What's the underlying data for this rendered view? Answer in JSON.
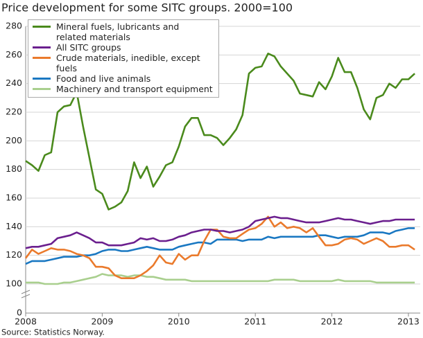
{
  "chart_data": {
    "type": "line",
    "title": "Price development for some SITC groups. 2000=100",
    "source": "Source: Statistics Norway.",
    "x": [
      2008,
      2008.083,
      2008.167,
      2008.25,
      2008.333,
      2008.417,
      2008.5,
      2008.583,
      2008.667,
      2008.75,
      2008.833,
      2008.917,
      2009,
      2009.083,
      2009.167,
      2009.25,
      2009.333,
      2009.417,
      2009.5,
      2009.583,
      2009.667,
      2009.75,
      2009.833,
      2009.917,
      2010,
      2010.083,
      2010.167,
      2010.25,
      2010.333,
      2010.417,
      2010.5,
      2010.583,
      2010.667,
      2010.75,
      2010.833,
      2010.917,
      2011,
      2011.083,
      2011.167,
      2011.25,
      2011.333,
      2011.417,
      2011.5,
      2011.583,
      2011.667,
      2011.75,
      2011.833,
      2011.917,
      2012,
      2012.083,
      2012.167,
      2012.25,
      2012.333,
      2012.417,
      2012.5,
      2012.583,
      2012.667,
      2012.75,
      2012.833,
      2012.917,
      2013,
      2013.083
    ],
    "series": [
      {
        "name": "Mineral fuels, lubricants and related materials",
        "color": "#4a8a1c",
        "values": [
          186,
          183,
          179,
          190,
          192,
          220,
          224,
          225,
          234,
          210,
          188,
          166,
          163,
          152,
          154,
          157,
          165,
          185,
          174,
          182,
          168,
          175,
          183,
          185,
          196,
          210,
          216,
          216,
          204,
          204,
          202,
          197,
          202,
          208,
          218,
          247,
          251,
          252,
          261,
          259,
          252,
          247,
          242,
          233,
          232,
          231,
          241,
          236,
          245,
          258,
          248,
          248,
          237,
          222,
          215,
          230,
          232,
          240,
          237,
          243,
          243,
          247
        ]
      },
      {
        "name": "All SITC groups",
        "color": "#6b1f8e",
        "values": [
          125,
          126,
          126,
          127,
          128,
          132,
          133,
          134,
          136,
          134,
          132,
          129,
          129,
          127,
          127,
          127,
          128,
          129,
          132,
          131,
          132,
          130,
          130,
          131,
          133,
          134,
          136,
          137,
          138,
          138,
          137,
          137,
          136,
          137,
          138,
          140,
          144,
          145,
          146,
          147,
          146,
          146,
          145,
          144,
          143,
          143,
          143,
          144,
          145,
          146,
          145,
          145,
          144,
          143,
          142,
          143,
          144,
          144,
          145,
          145,
          145,
          145
        ]
      },
      {
        "name": "Crude materials, inedible, except fuels",
        "color": "#ea7a2c",
        "values": [
          118,
          124,
          121,
          123,
          125,
          124,
          124,
          123,
          121,
          120,
          118,
          112,
          112,
          111,
          106,
          104,
          104,
          104,
          106,
          109,
          113,
          120,
          115,
          114,
          121,
          117,
          120,
          120,
          130,
          138,
          138,
          133,
          132,
          132,
          135,
          138,
          139,
          142,
          147,
          140,
          143,
          139,
          140,
          139,
          136,
          139,
          133,
          127,
          127,
          128,
          131,
          132,
          131,
          128,
          130,
          132,
          130,
          126,
          126,
          127,
          127,
          124
        ]
      },
      {
        "name": "Food and live animals",
        "color": "#1a78c2",
        "values": [
          114,
          116,
          116,
          116,
          117,
          118,
          119,
          119,
          119,
          120,
          120,
          121,
          123,
          124,
          124,
          123,
          123,
          124,
          125,
          126,
          125,
          124,
          124,
          124,
          126,
          127,
          128,
          129,
          129,
          128,
          131,
          131,
          131,
          131,
          130,
          131,
          131,
          131,
          133,
          132,
          133,
          133,
          133,
          133,
          133,
          133,
          134,
          134,
          133,
          132,
          133,
          133,
          133,
          134,
          136,
          136,
          136,
          135,
          137,
          138,
          139,
          139
        ]
      },
      {
        "name": "Machinery and transport equipment",
        "color": "#a9cf8e",
        "values": [
          101,
          101,
          101,
          100,
          100,
          100,
          101,
          101,
          102,
          103,
          104,
          105,
          107,
          106,
          106,
          106,
          105,
          106,
          106,
          105,
          105,
          104,
          103,
          103,
          103,
          103,
          102,
          102,
          102,
          102,
          102,
          102,
          102,
          102,
          102,
          102,
          102,
          102,
          102,
          103,
          103,
          103,
          103,
          102,
          102,
          102,
          102,
          102,
          102,
          103,
          102,
          102,
          102,
          102,
          102,
          101,
          101,
          101,
          101,
          101,
          101,
          101
        ]
      }
    ],
    "xlim": [
      2008,
      2013.1
    ],
    "xticks": [
      2008,
      2009,
      2010,
      2011,
      2012,
      2013
    ],
    "ylim": [
      0,
      280
    ],
    "yticks": [
      0,
      100,
      120,
      140,
      160,
      180,
      200,
      220,
      240,
      260,
      280
    ],
    "grid": true
  }
}
